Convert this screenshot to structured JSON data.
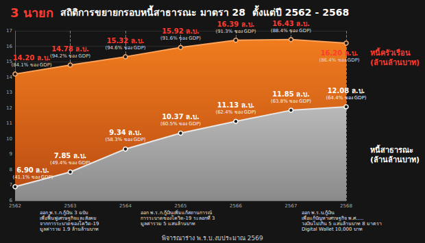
{
  "chart_data": {
    "type": "area",
    "title": "3 นายก",
    "subtitle": "สถิติการขยายกรอบหนี้สาธารณะ มาตรา 28  ตั้งแต่ปี 2562 - 2568",
    "categories": [
      "2562",
      "2563",
      "2564",
      "2565",
      "2566",
      "2567",
      "2568"
    ],
    "series": [
      {
        "name": "หนี้ครัวเรือน\n(ล้านล้านบาท)",
        "color": "#f07c1e",
        "values": [
          14.2,
          14.78,
          15.32,
          15.92,
          16.39,
          16.43,
          16.2
        ],
        "value_labels": [
          "14.20 ล.บ.",
          "14.78 ล.บ.",
          "15.32 ล.บ.",
          "15.92 ล.บ.",
          "16.39 ล.บ.",
          "16.43 ล.บ.",
          "16.20 ล.บ."
        ],
        "gdp_labels": [
          "(84.1% ของ GDP)",
          "(94.2% ของ GDP)",
          "(94.6% ของ GDP)",
          "(91.6% ของ GDP)",
          "(91.3% ของ GDP)",
          "(88.4% ของ GDP)",
          "(86.4% ของ GDP)"
        ]
      },
      {
        "name": "หนี้สาธารณะ\n(ล้านล้านบาท)",
        "color": "#b9b9b9",
        "values": [
          6.9,
          7.85,
          9.34,
          10.37,
          11.13,
          11.85,
          12.08
        ],
        "value_labels": [
          "6.90 ล.บ.",
          "7.85 ล.บ.",
          "9.34 ล.บ.",
          "10.37 ล.บ.",
          "11.13 ล.บ.",
          "11.85 ล.บ.",
          "12.08 ล.บ."
        ],
        "gdp_labels": [
          "(41.1% ของ GDP)",
          "(49.4% ของ GDP)",
          "(58.3% ของ GDP)",
          "(60.5% ของ GDP)",
          "(62.4% ของ GDP)",
          "(63.8% ของ GDP)",
          "(64.4% ของ GDP)"
        ]
      }
    ],
    "ylim": [
      6,
      17
    ],
    "yticks": [
      6,
      7,
      8,
      9,
      10,
      11,
      12,
      13,
      14,
      15,
      16,
      17
    ],
    "grid": true,
    "data_labels": true,
    "marker": "circle",
    "line_style": "solid",
    "annotations": [
      "ออก พ.ร.ก.กู้เงิน 3 ฉบับ\nเพื่อฟื้นฟูเศรษฐกิจและสังคม\nจากการระบาดของโควิด-19\nมูลค่ารวม 1.9 ล้านล้านบาท",
      "ออก พ.ร.ก.กู้เงินเพิ่มแก้สถานการณ์\nการระบาดของโควิด-19 ระลอกที่ 3\nมูลค่ารวม 5 แสนล้านบาท",
      "ออก พ.ร.บ.กู้เงิน\nเพื่อแก้ปัญหาเศรษฐกิจ พ.ศ.....\nวงเงินไม่เกิน 5 แสนล้านบาท 8 มาตรา\nDigital Wallet 10,000 บาท"
    ],
    "footer": "พิจารณาร่าง พ.ร.บ.งบประมาณ 2569"
  }
}
